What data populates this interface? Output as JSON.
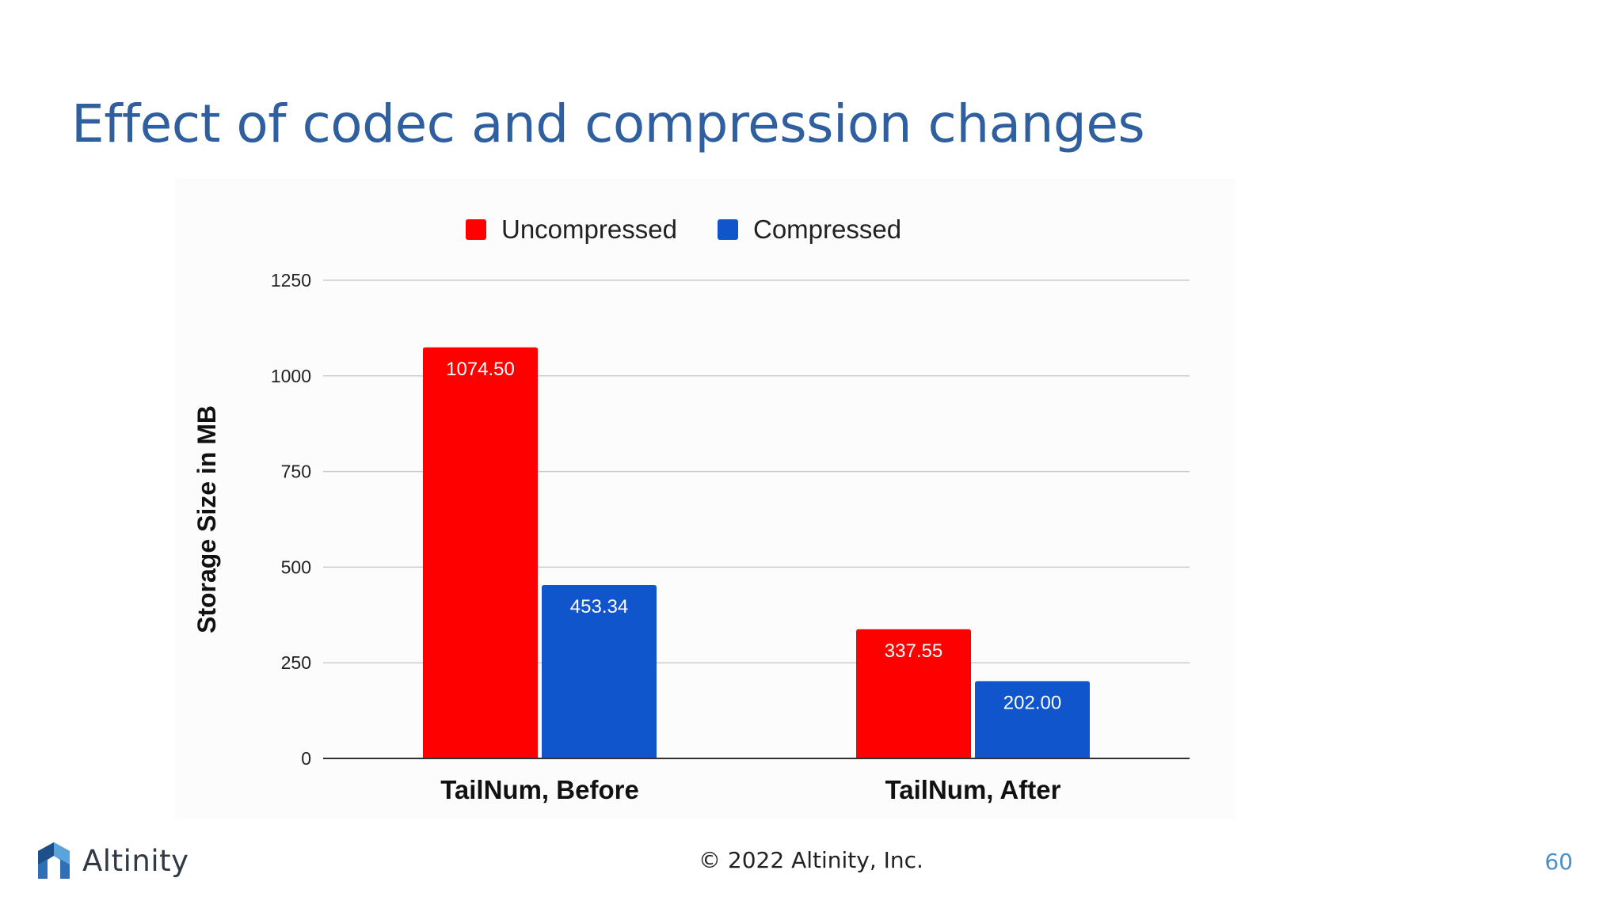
{
  "slide": {
    "title": "Effect of codec and compression changes",
    "copyright": "© 2022 Altinity, Inc.",
    "page_number": "60",
    "logo_text": "Altinity"
  },
  "colors": {
    "title": "#2f5f9e",
    "uncompressed": "#ff0000",
    "compressed": "#1155cc",
    "page_number": "#4a90c8"
  },
  "chart_data": {
    "type": "bar",
    "title": "",
    "xlabel": "",
    "ylabel": "Storage Size in MB",
    "categories": [
      "TailNum, Before",
      "TailNum, After"
    ],
    "series": [
      {
        "name": "Uncompressed",
        "values": [
          1074.5,
          337.55
        ],
        "labels": [
          "1074.50",
          "337.55"
        ],
        "color": "#ff0000"
      },
      {
        "name": "Compressed",
        "values": [
          453.34,
          202.0
        ],
        "labels": [
          "453.34",
          "202.00"
        ],
        "color": "#1155cc"
      }
    ],
    "ylim": [
      0,
      1250
    ],
    "yticks": [
      "0",
      "250",
      "500",
      "750",
      "1000",
      "1250"
    ],
    "grid": true,
    "legend": "top"
  }
}
